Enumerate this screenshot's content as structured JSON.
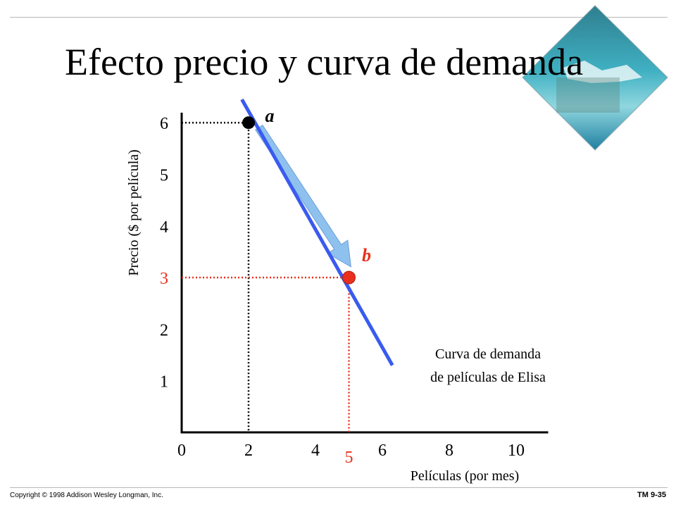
{
  "title": "Efecto precio y curva de demanda",
  "footer": {
    "copyright": "Copyright © 1998 Addison Wesley Longman, Inc.",
    "slide_id": "TM 9-35"
  },
  "colors": {
    "axis": "#000000",
    "curve": "#3a5bef",
    "highlight": "#e8301c",
    "arrow": "#8fc1ef"
  },
  "chart_data": {
    "type": "line",
    "xlabel": "Películas (por mes)",
    "ylabel": "Precio ($ por película)",
    "xlim": [
      0,
      11
    ],
    "ylim": [
      0,
      6.2
    ],
    "x_ticks": [
      "0",
      "2",
      "4",
      "6",
      "8",
      "10"
    ],
    "y_ticks": [
      "1",
      "2",
      "3",
      "4",
      "5",
      "6"
    ],
    "series": [
      {
        "name": "Curva de demanda de películas de Elisa",
        "x": [
          1.8,
          6.3
        ],
        "y": [
          6.45,
          1.3
        ]
      }
    ],
    "points": [
      {
        "label": "a",
        "x": 2,
        "y": 6
      },
      {
        "label": "b",
        "x": 5,
        "y": 3
      }
    ],
    "highlighted_ticks": {
      "x": "5",
      "y": "3"
    },
    "annotation": [
      "Curva de demanda",
      "de películas de Elisa"
    ],
    "arrow": {
      "from": "a",
      "to": "b"
    }
  }
}
